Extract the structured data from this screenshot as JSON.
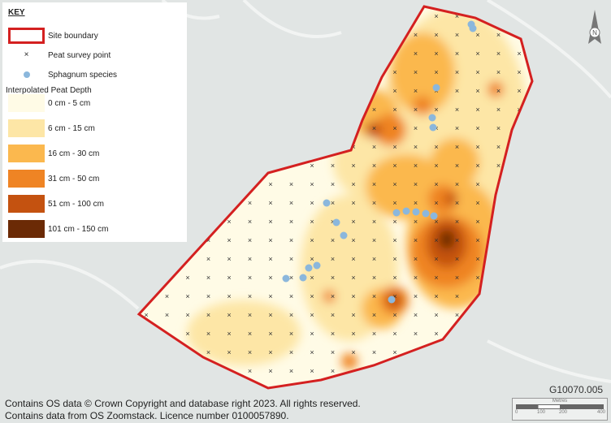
{
  "key": {
    "title": "KEY",
    "site_boundary": "Site boundary",
    "survey_point": "Peat survey point",
    "sphagnum": "Sphagnum species",
    "depth_heading": "Interpolated Peat Depth",
    "depth_classes": [
      {
        "label": "0 cm - 5 cm",
        "color": "#fffbe6"
      },
      {
        "label": "6 cm - 15 cm",
        "color": "#fde6a6"
      },
      {
        "label": "16 cm - 30 cm",
        "color": "#fbb84e"
      },
      {
        "label": "31 cm - 50 cm",
        "color": "#ef8424"
      },
      {
        "label": "51 cm - 100 cm",
        "color": "#c45210"
      },
      {
        "label": "101 cm - 150 cm",
        "color": "#6b2a05"
      }
    ]
  },
  "colors": {
    "boundary": "#d42020",
    "sphagnum": "#8bb7dc",
    "background": "#e1e5e4"
  },
  "north_arrow": "N",
  "drawing_ref": "G10070.005",
  "scale_bar": {
    "unit": "Metres",
    "ticks": [
      "0",
      "100",
      "200",
      "400"
    ]
  },
  "footer": [
    "Contains OS data © Crown Copyright and database right 2023. All rights reserved.",
    "Contains data from OS Zoomstack. Licence number 0100057890."
  ]
}
